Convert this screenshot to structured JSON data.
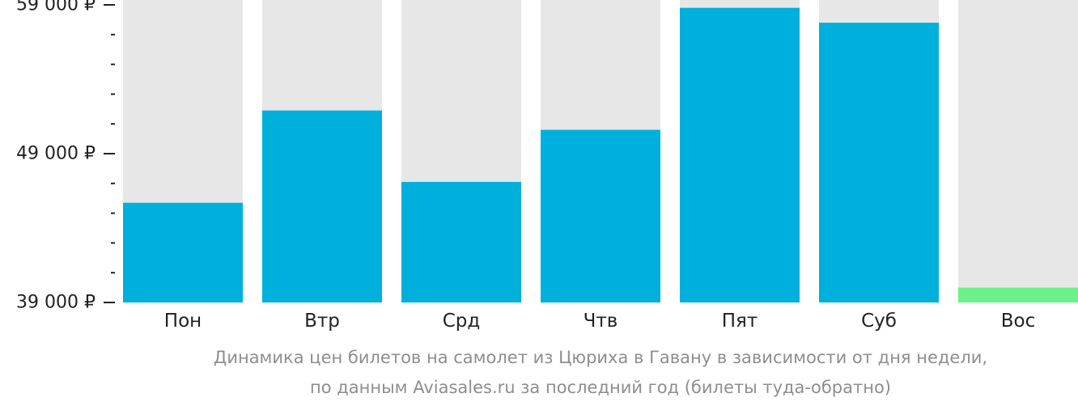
{
  "chart_data": {
    "type": "bar",
    "categories": [
      "Пон",
      "Втр",
      "Срд",
      "Чтв",
      "Пят",
      "Суб",
      "Вос"
    ],
    "values": [
      45700,
      51900,
      47100,
      50600,
      58800,
      57800,
      40000
    ],
    "highlight_index": 6,
    "ylim": [
      39000,
      59000
    ],
    "yticks": [
      39000,
      49000,
      59000
    ],
    "ytick_labels": [
      "39 000 ₽",
      "49 000 ₽",
      "59 000 ₽"
    ],
    "minor_ticks_per_interval": 4,
    "xlabel": "",
    "ylabel": "",
    "legend": "none",
    "grid": false,
    "colors": {
      "bar": "#00b0dc",
      "highlight": "#6cf08a",
      "track": "#e7e7e7",
      "axis_text": "#222222"
    }
  },
  "caption": {
    "line1": "Динамика цен билетов на самолет из Цюриха в Гавану в зависимости от дня недели,",
    "line2": "по данным Aviasales.ru за последний год (билеты туда-обратно)"
  }
}
